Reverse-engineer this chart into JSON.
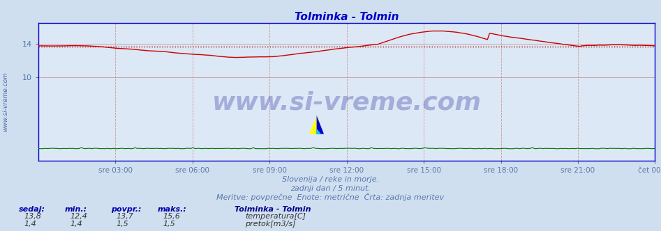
{
  "title": "Tolminka - Tolmin",
  "title_color": "#0000cc",
  "bg_color": "#d0dff0",
  "plot_bg_color": "#dce8f5",
  "grid_h_color": "#cc9999",
  "grid_v_color": "#cc9999",
  "spine_color": "#0000cc",
  "x_ticks_labels": [
    "sre 03:00",
    "sre 06:00",
    "sre 09:00",
    "sre 12:00",
    "sre 15:00",
    "sre 18:00",
    "sre 21:00",
    "čet 00:00"
  ],
  "y_ticks": [
    10,
    14
  ],
  "ylim_min": 0,
  "ylim_max": 16.533,
  "temp_color": "#cc0000",
  "flow_color": "#007700",
  "avg_line_color": "#990000",
  "watermark_text": "www.si-vreme.com",
  "watermark_color": "#00008b",
  "footer_line1": "Slovenija / reke in morje.",
  "footer_line2": "zadnji dan / 5 minut.",
  "footer_line3": "Meritve: povprečne  Enote: metrične  Črta: zadnja meritev",
  "footer_color": "#5577aa",
  "legend_title": "Tolminka - Tolmin",
  "legend_title_color": "#000088",
  "legend_items": [
    {
      "label": "temperatura[C]",
      "color": "#cc0000"
    },
    {
      "label": "pretok[m3/s]",
      "color": "#007700"
    }
  ],
  "table_headers": [
    "sedaj:",
    "min.:",
    "povpr.:",
    "maks.:"
  ],
  "table_color": "#0000aa",
  "table_rows": [
    [
      "13,8",
      "12,4",
      "13,7",
      "15,6"
    ],
    [
      "1,4",
      "1,4",
      "1,5",
      "1,5"
    ]
  ],
  "avg_temp": 13.7,
  "num_points": 288,
  "tick_color": "#5577aa",
  "sidebar_text": "www.si-vreme.com",
  "sidebar_color": "#4466aa"
}
